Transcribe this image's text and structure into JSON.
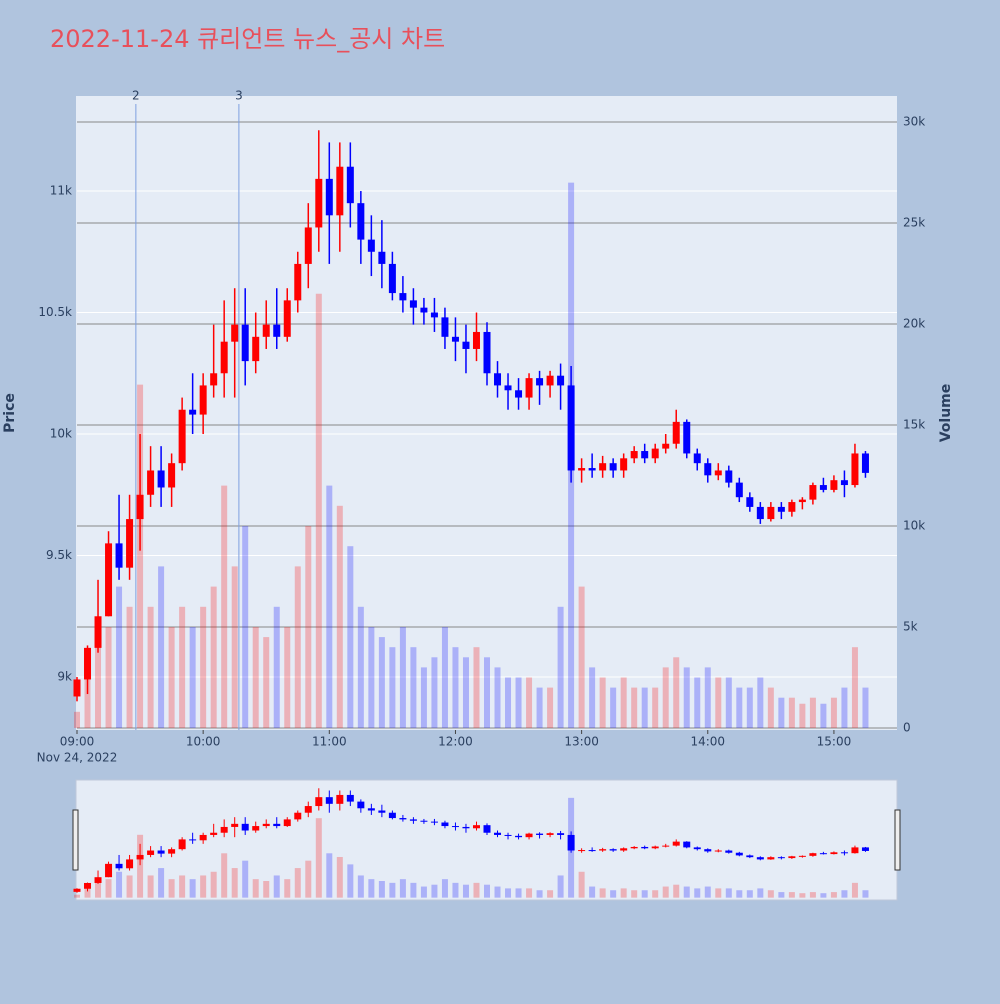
{
  "chart_data": {
    "type": "candlestick",
    "title": "2022-11-24 큐리언트 뉴스_공시 차트",
    "y_label": "Price",
    "y2_label": "Volume",
    "x_date": "Nov 24, 2022",
    "increasing_color": "#ff0000",
    "decreasing_color": "#0000ff",
    "xlim": [
      "09:00",
      "15:30"
    ],
    "xticks": [
      "09:00",
      "10:00",
      "11:00",
      "12:00",
      "13:00",
      "14:00",
      "15:00"
    ],
    "ylim": [
      8782,
      11391
    ],
    "yticks": [
      {
        "value": 9000,
        "label": "9k"
      },
      {
        "value": 9500,
        "label": "9.5k"
      },
      {
        "value": 10000,
        "label": "10k"
      },
      {
        "value": 10500,
        "label": "10.5k"
      },
      {
        "value": 11000,
        "label": "11k"
      }
    ],
    "y2lim": [
      -100,
      31290
    ],
    "y2ticks": [
      0,
      {
        "value": 5000,
        "label": "5k"
      },
      {
        "value": 10000,
        "label": "10k"
      },
      {
        "value": 15000,
        "label": "15k"
      },
      {
        "value": 20000,
        "label": "20k"
      },
      {
        "value": 25000,
        "label": "25k"
      },
      {
        "value": 30000,
        "label": "30k"
      }
    ],
    "annotations": [
      {
        "x": "09:28",
        "text": "2"
      },
      {
        "x": "10:17",
        "text": "3"
      }
    ],
    "x": [
      "09:00",
      "09:05",
      "09:10",
      "09:15",
      "09:20",
      "09:25",
      "09:30",
      "09:35",
      "09:40",
      "09:45",
      "09:50",
      "09:55",
      "10:00",
      "10:05",
      "10:10",
      "10:15",
      "10:20",
      "10:25",
      "10:30",
      "10:35",
      "10:40",
      "10:45",
      "10:50",
      "10:55",
      "11:00",
      "11:05",
      "11:10",
      "11:15",
      "11:20",
      "11:25",
      "11:30",
      "11:35",
      "11:40",
      "11:45",
      "11:50",
      "11:55",
      "12:00",
      "12:05",
      "12:10",
      "12:15",
      "12:20",
      "12:25",
      "12:30",
      "12:35",
      "12:40",
      "12:45",
      "12:50",
      "12:55",
      "13:00",
      "13:05",
      "13:10",
      "13:15",
      "13:20",
      "13:25",
      "13:30",
      "13:35",
      "13:40",
      "13:45",
      "13:50",
      "13:55",
      "14:00",
      "14:05",
      "14:10",
      "14:15",
      "14:20",
      "14:25",
      "14:30",
      "14:35",
      "14:40",
      "14:45",
      "14:50",
      "14:55",
      "15:00",
      "15:05",
      "15:10",
      "15:15"
    ],
    "open": [
      8920,
      8990,
      9120,
      9250,
      9550,
      9450,
      9650,
      9750,
      9850,
      9780,
      9880,
      10100,
      10080,
      10200,
      10250,
      10380,
      10450,
      10300,
      10400,
      10450,
      10400,
      10550,
      10700,
      10850,
      11050,
      10900,
      11100,
      10950,
      10800,
      10750,
      10700,
      10580,
      10550,
      10520,
      10500,
      10480,
      10400,
      10380,
      10350,
      10420,
      10250,
      10200,
      10180,
      10150,
      10230,
      10200,
      10240,
      10200,
      9850,
      9860,
      9850,
      9880,
      9850,
      9900,
      9930,
      9900,
      9940,
      9960,
      10050,
      9920,
      9880,
      9830,
      9850,
      9800,
      9740,
      9700,
      9650,
      9700,
      9680,
      9720,
      9730,
      9790,
      9770,
      9810,
      9790,
      9920
    ],
    "high": [
      9000,
      9130,
      9400,
      9600,
      9750,
      9750,
      10000,
      9950,
      9950,
      9920,
      10150,
      10250,
      10250,
      10450,
      10550,
      10600,
      10600,
      10500,
      10550,
      10600,
      10600,
      10750,
      10950,
      11250,
      11200,
      11200,
      11200,
      11000,
      10900,
      10880,
      10750,
      10650,
      10600,
      10560,
      10560,
      10520,
      10480,
      10450,
      10500,
      10460,
      10300,
      10250,
      10230,
      10250,
      10260,
      10260,
      10290,
      10280,
      9900,
      9920,
      9910,
      9900,
      9920,
      9950,
      9960,
      9960,
      10000,
      10100,
      10060,
      9940,
      9900,
      9880,
      9870,
      9820,
      9760,
      9720,
      9720,
      9720,
      9730,
      9740,
      9800,
      9820,
      9830,
      9850,
      9960,
      9930
    ],
    "low": [
      8900,
      8930,
      9100,
      9250,
      9400,
      9400,
      9520,
      9700,
      9700,
      9700,
      9850,
      10000,
      10000,
      10150,
      10150,
      10150,
      10200,
      10250,
      10350,
      10350,
      10380,
      10500,
      10600,
      10750,
      10700,
      10750,
      10850,
      10700,
      10650,
      10600,
      10550,
      10500,
      10450,
      10450,
      10420,
      10350,
      10300,
      10250,
      10300,
      10200,
      10150,
      10100,
      10100,
      10100,
      10120,
      10150,
      10100,
      9800,
      9800,
      9820,
      9820,
      9820,
      9820,
      9880,
      9880,
      9880,
      9920,
      9940,
      9900,
      9850,
      9800,
      9810,
      9780,
      9720,
      9680,
      9630,
      9640,
      9650,
      9660,
      9690,
      9710,
      9760,
      9760,
      9740,
      9780,
      9820
    ],
    "close": [
      8990,
      9120,
      9250,
      9550,
      9450,
      9650,
      9750,
      9850,
      9780,
      9880,
      10100,
      10080,
      10200,
      10250,
      10380,
      10450,
      10300,
      10400,
      10450,
      10400,
      10550,
      10700,
      10850,
      11050,
      10900,
      11100,
      10950,
      10800,
      10750,
      10700,
      10580,
      10550,
      10520,
      10500,
      10480,
      10400,
      10380,
      10350,
      10420,
      10250,
      10200,
      10180,
      10150,
      10230,
      10200,
      10240,
      10200,
      9850,
      9860,
      9850,
      9880,
      9850,
      9900,
      9930,
      9900,
      9940,
      9960,
      10050,
      9920,
      9880,
      9830,
      9850,
      9800,
      9740,
      9700,
      9650,
      9700,
      9680,
      9720,
      9730,
      9790,
      9770,
      9810,
      9790,
      9920,
      9840
    ],
    "volume": [
      800,
      3000,
      4000,
      5000,
      7000,
      6000,
      17000,
      6000,
      8000,
      5000,
      6000,
      5000,
      6000,
      7000,
      12000,
      8000,
      10000,
      5000,
      4500,
      6000,
      5000,
      8000,
      10000,
      21500,
      12000,
      11000,
      9000,
      6000,
      5000,
      4500,
      4000,
      5000,
      4000,
      3000,
      3500,
      5000,
      4000,
      3500,
      4000,
      3500,
      3000,
      2500,
      2500,
      2500,
      2000,
      2000,
      6000,
      27000,
      7000,
      3000,
      2500,
      2000,
      2500,
      2000,
      2000,
      2000,
      3000,
      3500,
      3000,
      2500,
      3000,
      2500,
      2500,
      2000,
      2000,
      2500,
      2000,
      1500,
      1500,
      1200,
      1500,
      1200,
      1500,
      2000,
      4000,
      2000
    ]
  }
}
